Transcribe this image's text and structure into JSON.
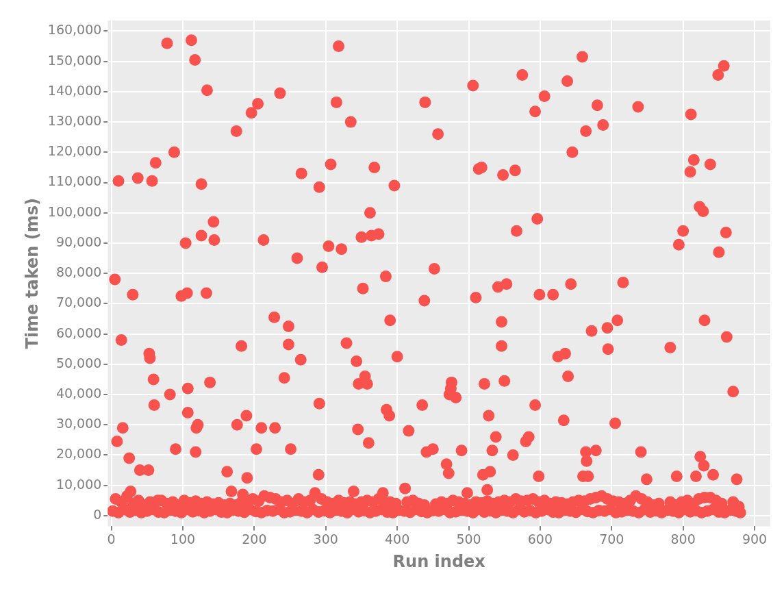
{
  "chart_data": {
    "type": "scatter",
    "xlabel": "Run index",
    "ylabel": "Time taken (ms)",
    "xlim": [
      -5,
      922
    ],
    "ylim": [
      -3500,
      163500
    ],
    "xticks": [
      0,
      100,
      200,
      300,
      400,
      500,
      600,
      700,
      800,
      900
    ],
    "yticks": [
      {
        "value": 0,
        "label": "0"
      },
      {
        "value": 10000,
        "label": "10,000"
      },
      {
        "value": 20000,
        "label": "20,000"
      },
      {
        "value": 30000,
        "label": "30,000"
      },
      {
        "value": 40000,
        "label": "40,000"
      },
      {
        "value": 50000,
        "label": "50,000"
      },
      {
        "value": 60000,
        "label": "60,000"
      },
      {
        "value": 70000,
        "label": "70,000"
      },
      {
        "value": 80000,
        "label": "80,000"
      },
      {
        "value": 90000,
        "label": "90,000"
      },
      {
        "value": 100000,
        "label": "100,000"
      },
      {
        "value": 110000,
        "label": "110,000"
      },
      {
        "value": 120000,
        "label": "120,000"
      },
      {
        "value": 130000,
        "label": "130,000"
      },
      {
        "value": 140000,
        "label": "140,000"
      },
      {
        "value": 150000,
        "label": "150,000"
      },
      {
        "value": 160000,
        "label": "160,000"
      }
    ],
    "grid": true,
    "legend": false,
    "marker": "circle",
    "series": [
      {
        "color": "#f8524f",
        "x": [
          5,
          8,
          10,
          14,
          16,
          25,
          27,
          30,
          37,
          40,
          52,
          53,
          54,
          57,
          59,
          60,
          62,
          65,
          78,
          82,
          88,
          90,
          98,
          104,
          106,
          107,
          107,
          112,
          117,
          118,
          119,
          121,
          126,
          126,
          133,
          134,
          138,
          143,
          144,
          162,
          168,
          175,
          176,
          182,
          184,
          189,
          190,
          196,
          203,
          205,
          210,
          213,
          228,
          229,
          236,
          242,
          248,
          248,
          251,
          260,
          265,
          266,
          285,
          290,
          291,
          291,
          295,
          304,
          307,
          315,
          318,
          322,
          329,
          335,
          339,
          343,
          345,
          346,
          350,
          352,
          355,
          358,
          360,
          362,
          364,
          368,
          374,
          380,
          384,
          385,
          389,
          390,
          396,
          400,
          411,
          416,
          435,
          438,
          439,
          441,
          450,
          452,
          457,
          469,
          472,
          473,
          475,
          476,
          482,
          490,
          498,
          506,
          510,
          514,
          518,
          520,
          522,
          526,
          528,
          530,
          533,
          538,
          541,
          546,
          546,
          548,
          550,
          553,
          562,
          565,
          567,
          575,
          580,
          584,
          593,
          593,
          596,
          598,
          599,
          606,
          618,
          625,
          633,
          635,
          638,
          639,
          643,
          645,
          659,
          660,
          664,
          664,
          665,
          667,
          672,
          678,
          680,
          688,
          694,
          695,
          705,
          708,
          716,
          737,
          741,
          749,
          782,
          791,
          794,
          800,
          810,
          811,
          815,
          818,
          823,
          824,
          828,
          829,
          830,
          838,
          842,
          849,
          850,
          857,
          860,
          861,
          870,
          875
        ],
        "values": [
          78000,
          24500,
          110500,
          58000,
          29000,
          19000,
          8000,
          73000,
          111500,
          15000,
          15000,
          53500,
          52000,
          110500,
          45000,
          36500,
          116500,
          5000,
          156000,
          40000,
          120000,
          22000,
          72500,
          90000,
          73500,
          42000,
          34000,
          157000,
          150500,
          21000,
          29000,
          30000,
          109500,
          92500,
          73500,
          140500,
          44000,
          97000,
          91000,
          14500,
          8000,
          127000,
          30000,
          56000,
          7000,
          33000,
          12500,
          133000,
          22000,
          136000,
          29000,
          91000,
          65500,
          29000,
          139500,
          45500,
          62500,
          56500,
          22000,
          85000,
          51500,
          113000,
          7500,
          13500,
          108500,
          37000,
          82000,
          89000,
          116000,
          136500,
          155000,
          88000,
          57000,
          130000,
          8000,
          51000,
          28500,
          43500,
          92000,
          75000,
          46000,
          43500,
          24000,
          100000,
          92500,
          115000,
          93000,
          7500,
          79000,
          35000,
          33000,
          64500,
          109000,
          52500,
          9000,
          28000,
          36500,
          71000,
          136500,
          21000,
          22000,
          81500,
          126000,
          17000,
          14000,
          40000,
          42000,
          44000,
          39000,
          21500,
          7500,
          142000,
          72000,
          114500,
          115000,
          13500,
          43500,
          8500,
          33000,
          14500,
          21500,
          26000,
          75500,
          56000,
          64000,
          112500,
          44500,
          76500,
          20000,
          114000,
          94000,
          145500,
          24500,
          26000,
          36500,
          133500,
          98000,
          13000,
          73000,
          138500,
          73000,
          52500,
          31500,
          53500,
          143500,
          46000,
          76500,
          120000,
          151500,
          13000,
          127000,
          21000,
          18000,
          13000,
          61000,
          21500,
          135500,
          129000,
          62000,
          55000,
          30500,
          64500,
          77000,
          135000,
          21000,
          12000,
          55500,
          13000,
          89500,
          94000,
          113500,
          132500,
          117500,
          13000,
          102000,
          19500,
          100500,
          16500,
          64500,
          116000,
          13500,
          145500,
          87000,
          148500,
          93500,
          59000,
          41000,
          12000
        ]
      },
      {
        "color": "#f8524f",
        "x": [
          2,
          10,
          18,
          26,
          34,
          42,
          50,
          58,
          66,
          74,
          82,
          90,
          98,
          106,
          114,
          122,
          130,
          138,
          146,
          154,
          162,
          170,
          178,
          186,
          194,
          202,
          210,
          218,
          226,
          234,
          242,
          250,
          258,
          266,
          274,
          282,
          290,
          298,
          306,
          314,
          322,
          330,
          338,
          346,
          354,
          362,
          370,
          378,
          386,
          394,
          402,
          410,
          418,
          426,
          434,
          442,
          450,
          458,
          466,
          474,
          482,
          490,
          498,
          506,
          514,
          522,
          530,
          538,
          546,
          554,
          562,
          570,
          578,
          586,
          594,
          602,
          610,
          618,
          626,
          634,
          642,
          650,
          658,
          666,
          674,
          682,
          690,
          698,
          706,
          714,
          722,
          730,
          738,
          746,
          754,
          762,
          770,
          778,
          786,
          794,
          802,
          810,
          818,
          826,
          834,
          842,
          850,
          858,
          866,
          874,
          880
        ],
        "values": [
          1500,
          1000,
          2000,
          1200,
          1800,
          1000,
          1500,
          2000,
          1200,
          1000,
          1800,
          1500,
          1000,
          2000,
          1300,
          1700,
          1000,
          1500,
          2000,
          1200,
          1000,
          1800,
          1500,
          1100,
          2000,
          1400,
          1000,
          1700,
          1500,
          2000,
          1000,
          1300,
          1800,
          1500,
          1000,
          2000,
          1200,
          1600,
          1000,
          1800,
          1500,
          1000,
          2000,
          1300,
          1700,
          1000,
          1500,
          2000,
          1200,
          1000,
          1800,
          1500,
          1100,
          2000,
          1400,
          1000,
          1700,
          1500,
          2000,
          1000,
          1300,
          1800,
          1500,
          1000,
          2000,
          1200,
          1600,
          1000,
          1800,
          1500,
          1000,
          2000,
          1300,
          1700,
          1000,
          1500,
          2000,
          1200,
          1000,
          1800,
          1500,
          1100,
          2000,
          1400,
          1000,
          1700,
          1500,
          2000,
          1000,
          1300,
          1800,
          1500,
          1000,
          2000,
          1200,
          1600,
          1000,
          1800,
          1500,
          1000,
          2000,
          1300,
          1700,
          1000,
          1500,
          2000,
          1200,
          1000,
          1800,
          1500,
          1000
        ]
      },
      {
        "color": "#f8524f",
        "x": [
          6,
          14,
          22,
          30,
          38,
          46,
          54,
          70,
          78,
          86,
          94,
          102,
          110,
          118,
          126,
          134,
          142,
          150,
          158,
          166,
          174,
          182,
          190,
          198,
          206,
          214,
          222,
          230,
          238,
          246,
          254,
          262,
          270,
          278,
          294,
          302,
          310,
          318,
          326,
          334,
          342,
          350,
          358,
          366,
          374,
          382,
          390,
          398,
          414,
          422,
          430,
          438,
          454,
          462,
          470,
          478,
          486,
          494,
          502,
          510,
          518,
          526,
          534,
          542,
          550,
          558,
          566,
          574,
          582,
          590,
          598,
          606,
          614,
          622,
          630,
          638,
          646,
          654,
          662,
          670,
          678,
          686,
          694,
          702,
          710,
          718,
          726,
          734,
          742,
          750,
          758,
          766,
          782,
          790,
          798,
          806,
          814,
          822,
          830,
          838,
          846,
          854,
          870,
          878
        ],
        "values": [
          5500,
          4500,
          6500,
          4000,
          5000,
          3500,
          4500,
          5000,
          4000,
          4500,
          3500,
          5000,
          4200,
          4800,
          4000,
          4500,
          3800,
          4200,
          3500,
          4000,
          3500,
          4500,
          4000,
          5500,
          4800,
          6500,
          6000,
          5500,
          4500,
          5000,
          4000,
          5500,
          4500,
          5000,
          5500,
          4500,
          4000,
          5000,
          4200,
          4500,
          3800,
          4500,
          5000,
          4500,
          5500,
          4800,
          4500,
          4000,
          4500,
          5000,
          4000,
          3500,
          3800,
          4500,
          4000,
          5000,
          4500,
          4000,
          3500,
          4500,
          4200,
          4800,
          4000,
          4500,
          5000,
          4500,
          5500,
          4800,
          5000,
          5500,
          4500,
          5000,
          4000,
          4500,
          4200,
          3800,
          4500,
          5000,
          4800,
          5500,
          6000,
          6500,
          5500,
          4800,
          4500,
          4000,
          5000,
          6500,
          5500,
          4500,
          3500,
          4000,
          4500,
          3500,
          4500,
          5000,
          4000,
          5500,
          6000,
          6000,
          5000,
          4000,
          4500,
          3000
        ]
      }
    ]
  }
}
